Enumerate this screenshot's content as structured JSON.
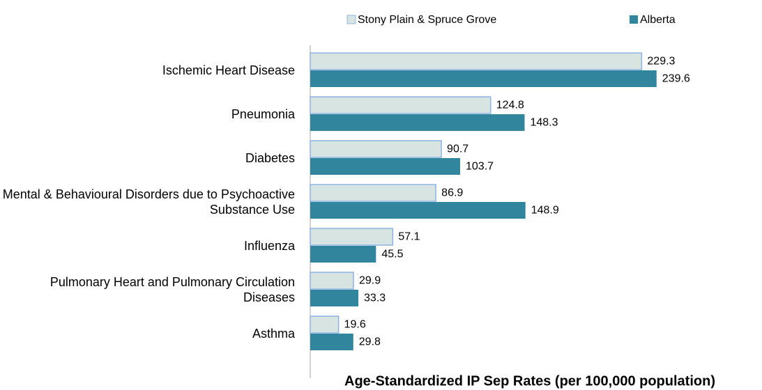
{
  "chart_data": {
    "type": "bar",
    "orientation": "horizontal",
    "x_label": "Age-Standardized IP Sep Rates (per 100,000 population)",
    "categories": [
      "Ischemic Heart Disease",
      "Pneumonia",
      "Diabetes",
      "Mental & Behavioural Disorders due to Psychoactive Substance Use",
      "Influenza",
      "Pulmonary Heart and Pulmonary Circulation Diseases",
      "Asthma"
    ],
    "series": [
      {
        "name": "Stony Plain & Spruce Grove",
        "color": "#d7e4e2",
        "values": [
          229.3,
          124.8,
          90.7,
          86.9,
          57.1,
          29.9,
          19.6
        ]
      },
      {
        "name": "Alberta",
        "color": "#31859c",
        "values": [
          239.6,
          148.3,
          103.7,
          148.9,
          45.5,
          33.3,
          29.8
        ]
      }
    ],
    "xlim": [
      0,
      300
    ],
    "legend": "top"
  }
}
